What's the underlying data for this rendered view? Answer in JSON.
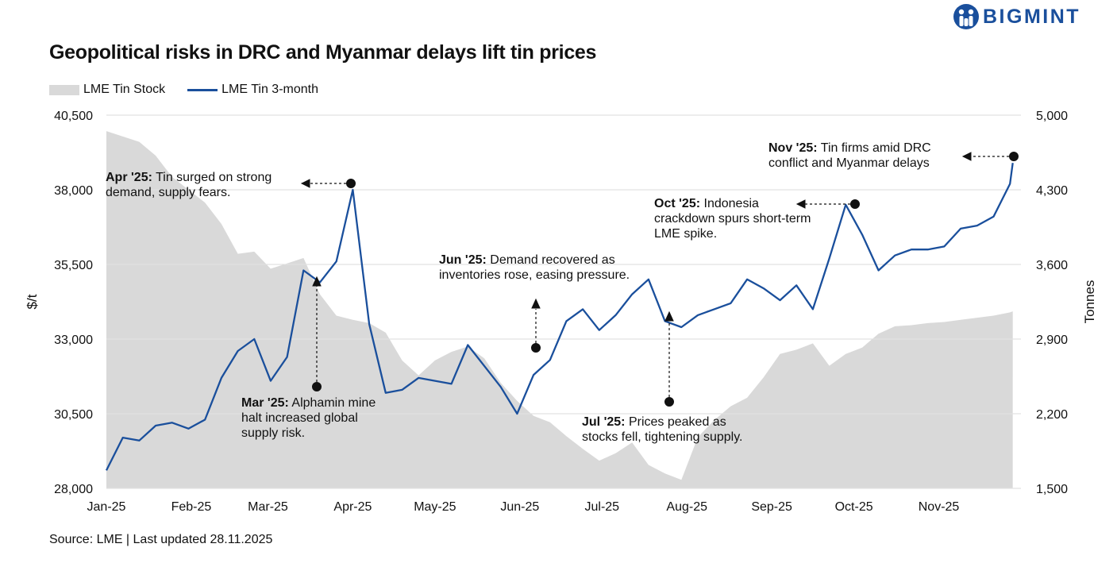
{
  "brand": {
    "name": "BIGMINT",
    "color": "#1a4f9c"
  },
  "source": "Source: LME | Last updated 28.11.2025",
  "chart_data": {
    "type": "line",
    "title": "Geopolitical risks in DRC and Myanmar delays lift tin prices",
    "ylabel": "$/t",
    "y2label": "Tonnes",
    "ylim": [
      28000,
      40500
    ],
    "y2lim": [
      1500,
      5000
    ],
    "yticks": [
      "28,000",
      "30,500",
      "33,000",
      "35,500",
      "38,000",
      "40,500"
    ],
    "y2ticks": [
      "1,500",
      "2,200",
      "2,900",
      "3,600",
      "4,300",
      "5,000"
    ],
    "xticks": [
      "Jan-25",
      "Feb-25",
      "Mar-25",
      "Apr-25",
      "May-25",
      "Jun-25",
      "Jul-25",
      "Aug-25",
      "Sep-25",
      "Oct-25",
      "Nov-25"
    ],
    "grid": true,
    "legend_position": "top-left",
    "x_days": [
      0,
      6,
      12,
      18,
      24,
      30,
      36,
      42,
      48,
      54,
      60,
      66,
      72,
      78,
      84,
      90,
      96,
      102,
      108,
      114,
      120,
      126,
      132,
      138,
      144,
      150,
      156,
      162,
      168,
      174,
      180,
      186,
      192,
      198,
      204,
      210,
      216,
      222,
      228,
      234,
      240,
      246,
      252,
      258,
      264,
      270,
      276,
      282,
      288,
      294,
      300,
      306,
      312,
      318,
      324,
      330,
      331
    ],
    "series": [
      {
        "name": "LME Tin Stock",
        "axis": "right",
        "type": "area",
        "color": "#d9d9d9",
        "values": [
          4850,
          4800,
          4750,
          4620,
          4420,
          4300,
          4180,
          3980,
          3700,
          3720,
          3560,
          3610,
          3660,
          3320,
          3120,
          3080,
          3050,
          2960,
          2700,
          2560,
          2700,
          2780,
          2830,
          2720,
          2490,
          2320,
          2180,
          2120,
          1990,
          1870,
          1760,
          1830,
          1930,
          1720,
          1640,
          1580,
          1980,
          2140,
          2270,
          2350,
          2540,
          2760,
          2800,
          2860,
          2650,
          2760,
          2820,
          2950,
          3020,
          3030,
          3050,
          3060,
          3080,
          3100,
          3120,
          3150,
          3160
        ]
      },
      {
        "name": "LME Tin 3-month",
        "axis": "left",
        "type": "line",
        "color": "#1a4f9c",
        "values": [
          28600,
          29700,
          29600,
          30100,
          30200,
          30000,
          30300,
          31700,
          32600,
          33000,
          31600,
          32400,
          35300,
          34900,
          35600,
          38000,
          33500,
          31200,
          31300,
          31700,
          31600,
          31500,
          32800,
          32100,
          31400,
          30500,
          31800,
          32300,
          33600,
          34000,
          33300,
          33800,
          34500,
          35000,
          33600,
          33400,
          33800,
          34000,
          34200,
          35000,
          34700,
          34300,
          34800,
          34000,
          35700,
          37500,
          36500,
          35300,
          35800,
          36000,
          36000,
          36100,
          36700,
          36800,
          37100,
          38200,
          38900
        ]
      }
    ],
    "annotations": [
      {
        "title": "Apr '25:",
        "text": "Tin surged on strong demand, supply fears."
      },
      {
        "title": "Mar '25:",
        "text": "Alphamin mine halt increased global supply risk."
      },
      {
        "title": "Jun '25:",
        "text": "Demand recovered as inventories rose, easing pressure."
      },
      {
        "title": "Jul '25:",
        "text": "Prices peaked as stocks fell, tightening supply."
      },
      {
        "title": "Oct '25:",
        "text": "Indonesia crackdown spurs short-term LME spike."
      },
      {
        "title": "Nov '25:",
        "text": "Tin firms amid DRC conflict and Myanmar delays"
      }
    ]
  }
}
